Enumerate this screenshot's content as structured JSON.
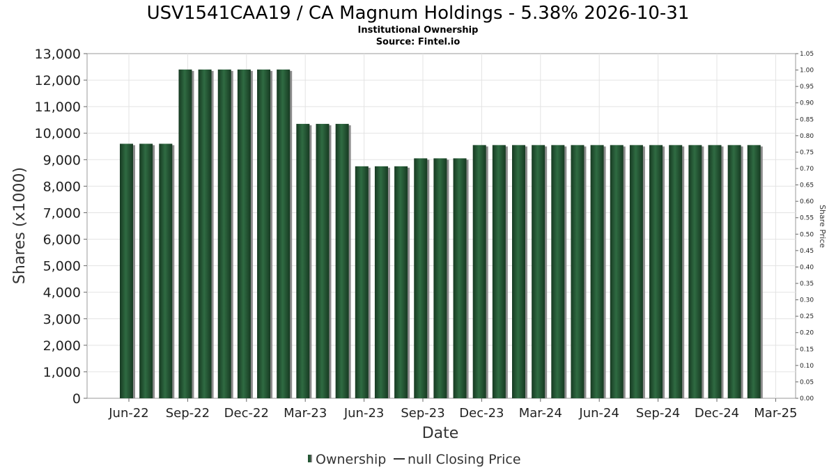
{
  "chart_data": {
    "type": "bar",
    "title": "USV1541CAA19 / CA Magnum Holdings - 5.38% 2026-10-31",
    "subtitle": [
      "Institutional Ownership",
      "Source: Fintel.io"
    ],
    "xlabel": "Date",
    "ylabel": "Shares (x1000)",
    "y2label": "Share Price",
    "ylim": [
      0,
      13000
    ],
    "y2lim": [
      0,
      1.05
    ],
    "y_ticks": [
      "0",
      "1,000",
      "2,000",
      "3,000",
      "4,000",
      "5,000",
      "6,000",
      "7,000",
      "8,000",
      "9,000",
      "10,000",
      "11,000",
      "12,000",
      "13,000"
    ],
    "y2_ticks": [
      "0.00",
      "0.05",
      "0.10",
      "0.15",
      "0.20",
      "0.25",
      "0.30",
      "0.35",
      "0.40",
      "0.45",
      "0.50",
      "0.55",
      "0.60",
      "0.65",
      "0.70",
      "0.75",
      "0.80",
      "0.85",
      "0.90",
      "0.95",
      "1.00",
      "1.05"
    ],
    "x_tick_labels": [
      "Jun-22",
      "Sep-22",
      "Dec-22",
      "Mar-23",
      "Jun-23",
      "Sep-23",
      "Dec-23",
      "Mar-24",
      "Jun-24",
      "Sep-24",
      "Dec-24",
      "Mar-25"
    ],
    "grid": true,
    "legend_position": "bottom",
    "series": [
      {
        "name": "Ownership",
        "color": "#1e4a2c",
        "values": [
          9600,
          9600,
          9600,
          12400,
          12400,
          12400,
          12400,
          12400,
          12400,
          10350,
          10350,
          10350,
          8750,
          8750,
          8750,
          9050,
          9050,
          9050,
          9550,
          9550,
          9550,
          9550,
          9550,
          9550,
          9550,
          9550,
          9550,
          9550,
          9550,
          9550,
          9550,
          9550,
          9550
        ]
      },
      {
        "name": "null Closing Price",
        "color": "#333333",
        "values": []
      }
    ]
  }
}
